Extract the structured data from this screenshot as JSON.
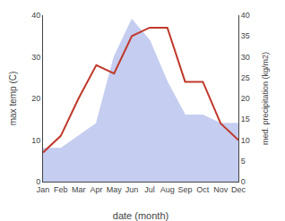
{
  "chart_data": {
    "type": "line",
    "categories": [
      "Jan",
      "Feb",
      "Mar",
      "Apr",
      "May",
      "Jun",
      "Jul",
      "Aug",
      "Sep",
      "Oct",
      "Nov",
      "Dec"
    ],
    "xlabel": "date (month)",
    "ylabel": "max temp (C)",
    "y2label": "med. precipitation (kg/m2)",
    "ylim": [
      0,
      40
    ],
    "yticks": [
      0,
      10,
      20,
      30,
      40
    ],
    "y2lim": [
      0,
      40
    ],
    "y2ticks": [
      0,
      5,
      10,
      15,
      20,
      25,
      30,
      35,
      40
    ],
    "grid": false,
    "series": [
      {
        "type": "area",
        "axis": "y2",
        "color": "#c5cdf0",
        "values": [
          8,
          8,
          11,
          14,
          30,
          39,
          34,
          24,
          16,
          16,
          14,
          14
        ]
      },
      {
        "type": "line",
        "color": "#c0392b",
        "values": [
          7,
          11,
          20,
          28,
          26,
          35,
          37,
          37,
          24,
          24,
          14,
          10
        ]
      }
    ]
  }
}
